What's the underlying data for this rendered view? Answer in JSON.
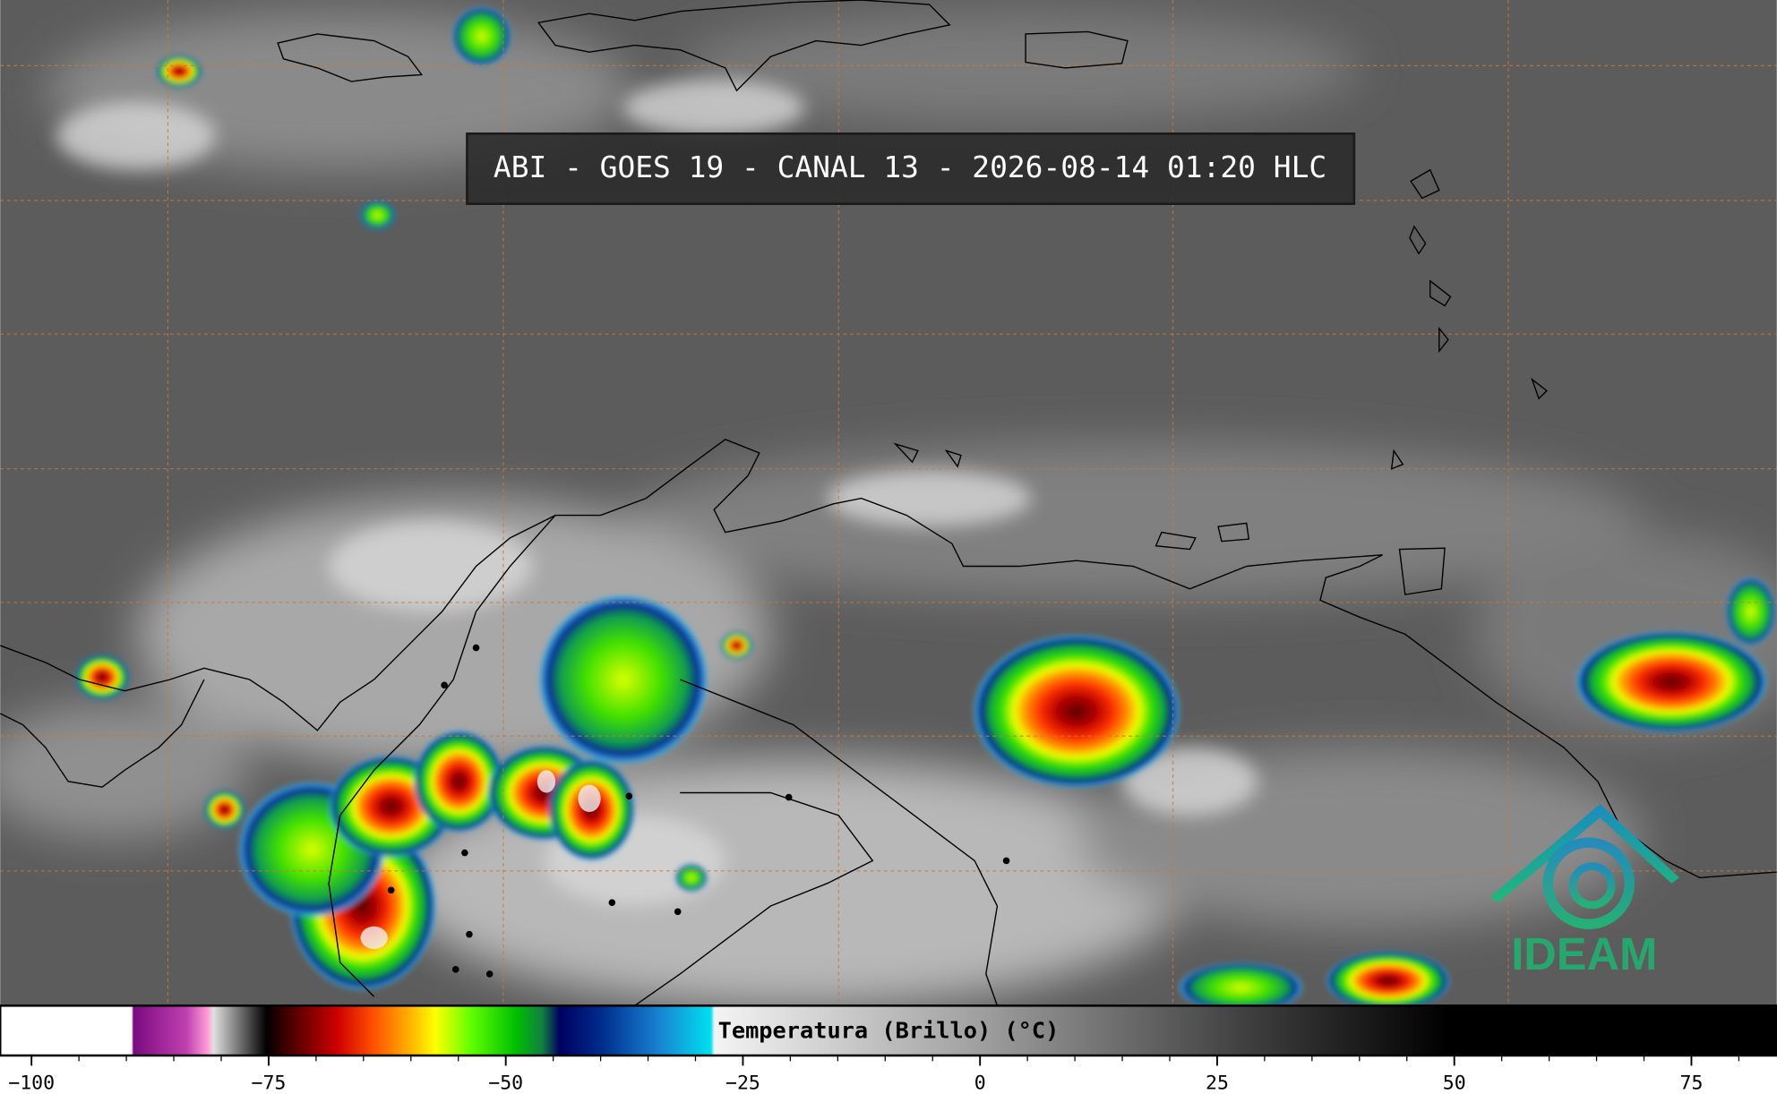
{
  "title": "ABI - GOES 19 - CANAL 13 - 2026-08-14 01:20 HLC",
  "logo": "IDEAM",
  "colorbar": {
    "label": "Temperatura (Brillo) (°C)",
    "range": [
      -103.3,
      84
    ],
    "ticks": [
      {
        "value": -100,
        "label": "−100"
      },
      {
        "value": -75,
        "label": "−75"
      },
      {
        "value": -50,
        "label": "−50"
      },
      {
        "value": -25,
        "label": "−25"
      },
      0,
      25,
      50,
      75
    ]
  }
}
